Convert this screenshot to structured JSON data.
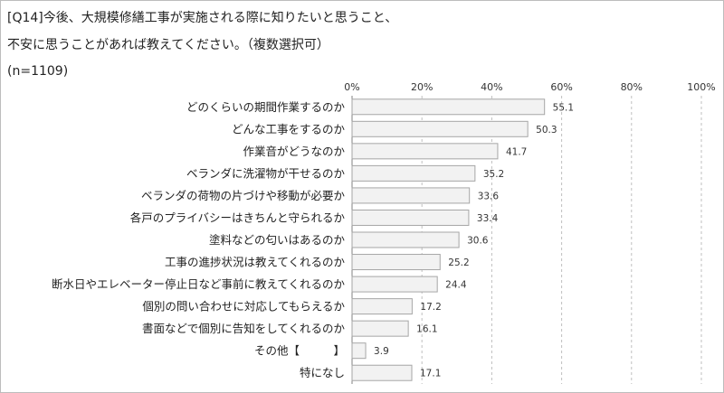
{
  "question": {
    "line1": "[Q14]今後、大規模修繕工事が実施される際に知りたいと思うこと、",
    "line2": "不安に思うことがあれば教えてください。（複数選択可）",
    "n_label": "(n=1109)"
  },
  "chart_data": {
    "type": "bar",
    "orientation": "horizontal",
    "title": "",
    "xlabel": "",
    "ylabel": "",
    "xlim": [
      0,
      100
    ],
    "ticks": [
      0,
      20,
      40,
      60,
      80,
      100
    ],
    "tick_labels": [
      "0%",
      "20%",
      "40%",
      "60%",
      "80%",
      "100%"
    ],
    "grid": "vertical-dashed",
    "categories": [
      "どのくらいの期間作業するのか",
      "どんな工事をするのか",
      "作業音がどうなのか",
      "ベランダに洗濯物が干せるのか",
      "ベランダの荷物の片づけや移動が必要か",
      "各戸のプライバシーはきちんと守られるか",
      "塗料などの匂いはあるのか",
      "工事の進捗状況は教えてくれるのか",
      "断水日やエレベーター停止日など事前に教えてくれるのか",
      "個別の問い合わせに対応してもらえるか",
      "書面などで個別に告知をしてくれるのか",
      "その他【　　　】",
      "特になし"
    ],
    "values": [
      55.1,
      50.3,
      41.7,
      35.2,
      33.6,
      33.4,
      30.6,
      25.2,
      24.4,
      17.2,
      16.1,
      3.9,
      17.1
    ],
    "value_labels": [
      "55.1",
      "50.3",
      "41.7",
      "35.2",
      "33.6",
      "33.4",
      "30.6",
      "25.2",
      "24.4",
      "17.2",
      "16.1",
      "3.9",
      "17.1"
    ],
    "colors": {
      "bar_fill": "#f2f2f2",
      "bar_stroke": "#a6a6a6",
      "grid": "#bfbfbf",
      "axis": "#808080"
    }
  }
}
